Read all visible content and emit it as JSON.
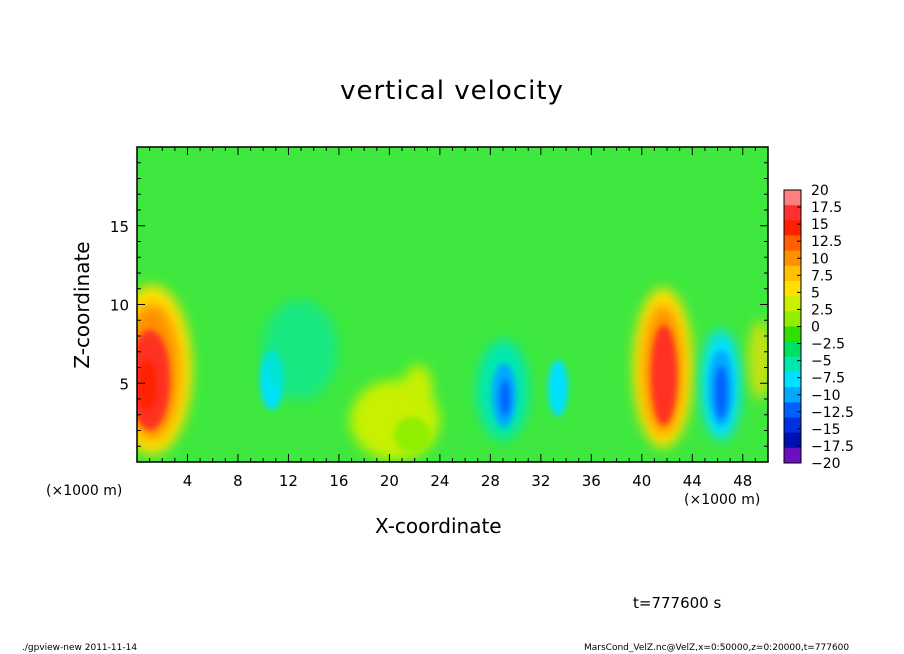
{
  "chart_data": {
    "type": "heatmap",
    "title": "vertical velocity",
    "xlabel": "X-coordinate",
    "ylabel": "Z-coordinate",
    "x_unit_label": "(×1000 m)",
    "xlim": [
      0,
      50
    ],
    "ylim": [
      0,
      20
    ],
    "x_ticks": [
      4,
      8,
      12,
      16,
      20,
      24,
      28,
      32,
      36,
      40,
      44,
      48
    ],
    "y_ticks": [
      5,
      10,
      15
    ],
    "colorbar": {
      "levels": [
        20,
        17.5,
        15,
        12.5,
        10,
        7.5,
        5,
        2.5,
        0,
        -2.5,
        -5,
        -7.5,
        -10,
        -12.5,
        -15,
        -17.5,
        -20
      ],
      "labels": [
        "20",
        "17.5",
        "15",
        "12.5",
        "10",
        "7.5",
        "5",
        "2.5",
        "0",
        "−2.5",
        "−5",
        "−7.5",
        "−10",
        "−12.5",
        "−15",
        "−17.5",
        "−20"
      ],
      "colors": [
        "#ff8080",
        "#ff3030",
        "#ff2000",
        "#ff6000",
        "#ff9000",
        "#ffc000",
        "#ffe000",
        "#c8f000",
        "#90ee00",
        "#30e000",
        "#00e060",
        "#00e8b0",
        "#00e0ff",
        "#00a8ff",
        "#0060ff",
        "#0030e0",
        "#0010b0",
        "#6a10c0"
      ],
      "background": "#3ee83e"
    },
    "features": [
      {
        "x": 1.3,
        "z": 5,
        "value": 17.5
      },
      {
        "x": 42,
        "z": 5,
        "value": 15
      },
      {
        "x": 46.5,
        "z": 4.5,
        "value": -12.5
      },
      {
        "x": 29.5,
        "z": 4,
        "value": -10
      },
      {
        "x": 33,
        "z": 4.5,
        "value": -7.5
      },
      {
        "x": 10.5,
        "z": 5,
        "value": -7.5
      },
      {
        "x": 20.5,
        "z": 2.5,
        "value": 2.5
      }
    ]
  },
  "time_text": "t=777600 s",
  "footer_left": "./gpview-new  2011-11-14",
  "footer_right": "MarsCond_VelZ.nc@VelZ,x=0:50000,z=0:20000,t=777600"
}
